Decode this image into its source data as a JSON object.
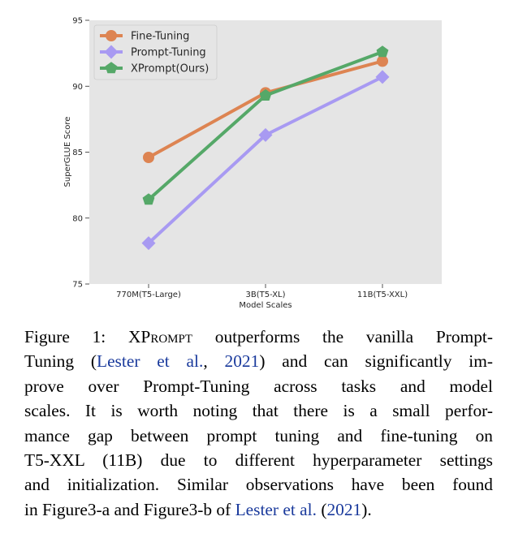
{
  "chart_data": {
    "type": "line",
    "categories": [
      "770M(T5-Large)",
      "3B(T5-XL)",
      "11B(T5-XXL)"
    ],
    "xlabel": "Model Scales",
    "ylabel": "SuperGLUE Score",
    "ylim": [
      75,
      95
    ],
    "yticks": [
      75,
      80,
      85,
      90,
      95
    ],
    "grid": false,
    "background": "#e5e5e5",
    "legend_position": "top-left",
    "series": [
      {
        "name": "Fine-Tuning",
        "values": [
          84.6,
          89.5,
          91.9
        ],
        "color": "#dd8452",
        "marker": "circle"
      },
      {
        "name": "Prompt-Tuning",
        "values": [
          78.1,
          86.3,
          90.7
        ],
        "color": "#a89af2",
        "marker": "diamond"
      },
      {
        "name": "XPrompt(Ours)",
        "values": [
          81.4,
          89.3,
          92.6
        ],
        "color": "#55a868",
        "marker": "pentagon"
      }
    ]
  },
  "caption": {
    "l1_label": "Figure 1: X",
    "l1_sc": "Prompt",
    "l1_rest": " outperforms the vanilla Prompt-",
    "l2_a": "Tuning (",
    "l2_cite": "Lester et al.",
    "l2_b": ", ",
    "l2_year": "2021",
    "l2_c": ") and can significantly im-",
    "l3": "prove over Prompt-Tuning across tasks and model",
    "l4": "scales. It is worth noting that there is a small perfor-",
    "l5": "mance gap between prompt tuning and fine-tuning on",
    "l6": "T5-XXL (11B) due to different hyperparameter settings",
    "l7": "and initialization. Similar observations have been found",
    "l8_a": "in Figure3-a and Figure3-b of ",
    "l8_cite": "Lester et al.",
    "l8_b": " (",
    "l8_year": "2021",
    "l8_c": ")."
  }
}
